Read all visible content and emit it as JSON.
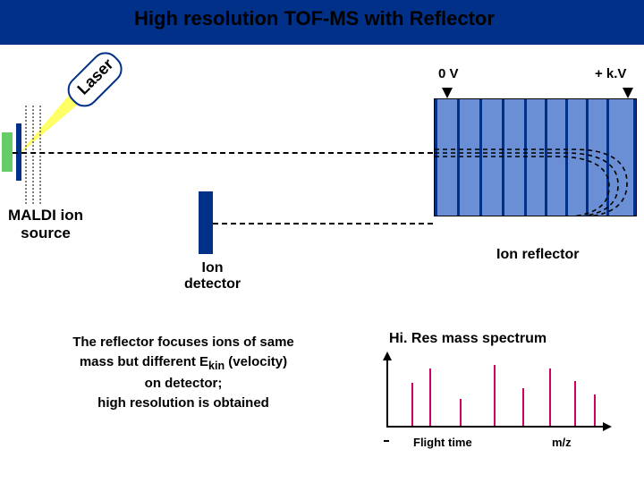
{
  "title": "High resolution TOF-MS with Reflector",
  "laser_label": "Laser",
  "voltage_zero": "0 V",
  "voltage_high": "+ k.V",
  "maldi_label": "MALDI ion source",
  "detector_label": "Ion detector",
  "reflector_label": "Ion reflector",
  "description_l1": "The reflector focuses ions of same",
  "description_l2": "mass but different E",
  "description_l2_sub": "kin",
  "description_l2_tail": " (velocity)",
  "description_l3": "on detector;",
  "description_l4": "high resolution is obtained",
  "spectrum_title": "Hi. Res mass spectrum",
  "x_label_1": "Flight  time",
  "x_label_2": "m/z",
  "colors": {
    "title_bar": "#003087",
    "reflector_fill": "#6a8fd4",
    "laser_beam": "#ffff66",
    "sample": "#66cc66",
    "peak": "#cc0066"
  },
  "spectrum": {
    "peaks_x": [
      28,
      48,
      82,
      120,
      152,
      182,
      210,
      232
    ],
    "peaks_h": [
      48,
      64,
      30,
      68,
      42,
      64,
      50,
      35
    ]
  },
  "reflector_plates_x": [
    0,
    25,
    50,
    75,
    100,
    123,
    146,
    169,
    192,
    222
  ],
  "source_grids_x": [
    28,
    36,
    44
  ]
}
